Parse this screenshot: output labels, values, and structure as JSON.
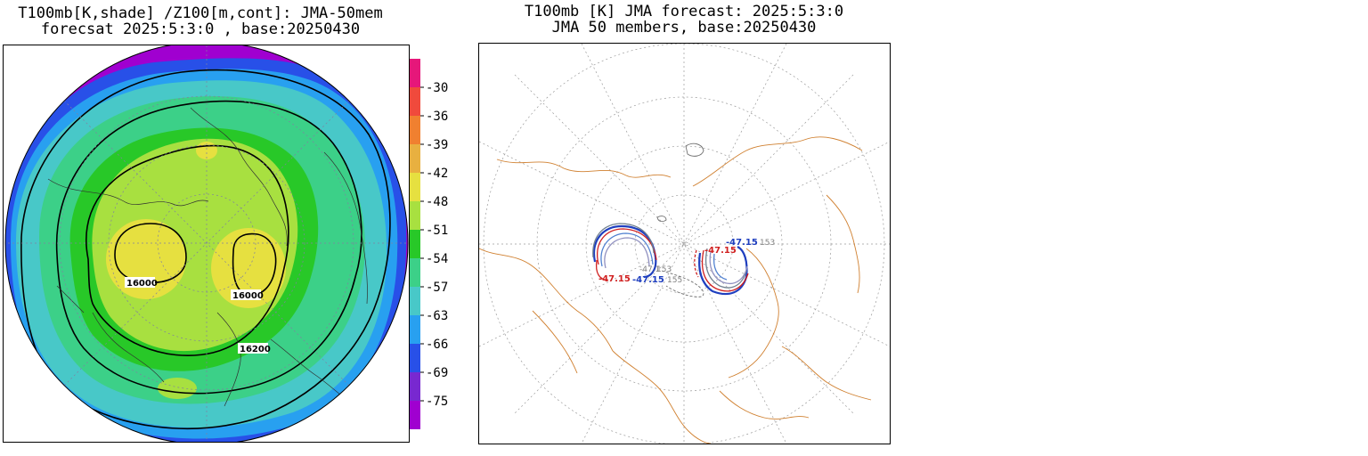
{
  "left_map": {
    "title_line1": "T100mb[K,shade] /Z100[m,cont]: JMA-50mem",
    "title_line2": "forecsat 2025:5:3:0 , base:20250430",
    "contour_labels": [
      "16000",
      "16000",
      "16200"
    ],
    "colorbar": {
      "labels": [
        "-30",
        "-36",
        "-39",
        "-42",
        "-48",
        "-51",
        "-54",
        "-57",
        "-63",
        "-66",
        "-69",
        "-75"
      ],
      "colors": [
        "#e6177a",
        "#f04a3c",
        "#f08030",
        "#e8b040",
        "#e6e040",
        "#a8e040",
        "#28c828",
        "#3cd088",
        "#48c8c8",
        "#28a0f0",
        "#2850e8",
        "#7828d0",
        "#a000d0"
      ]
    },
    "shading_colors": {
      "outer": "#a000d0",
      "deep_blue": "#2850e8",
      "blue": "#28a0f0",
      "cyan": "#48c8c8",
      "teal": "#3cd088",
      "green": "#28c828",
      "light_green": "#a8e040",
      "yellow": "#e6e040"
    }
  },
  "right_map": {
    "title_line1": "T100mb [K] JMA forecast: 2025:5:3:0",
    "title_line2": "JMA 50 members, base:20250430",
    "member_labels": [
      {
        "text": "-47.15",
        "color": "#1f3fbf"
      },
      {
        "text": "-47.15",
        "color": "#d02020"
      },
      {
        "text": "-47.15",
        "color": "#d02020"
      },
      {
        "text": "-47.15",
        "color": "#1f3fbf"
      },
      {
        "text": "153",
        "color": "#808080"
      },
      {
        "text": "153",
        "color": "#808080"
      },
      {
        "text": "155",
        "color": "#808080"
      },
      {
        "text": "-47.1",
        "color": "#808080"
      }
    ],
    "coastline_color": "#d08030"
  }
}
